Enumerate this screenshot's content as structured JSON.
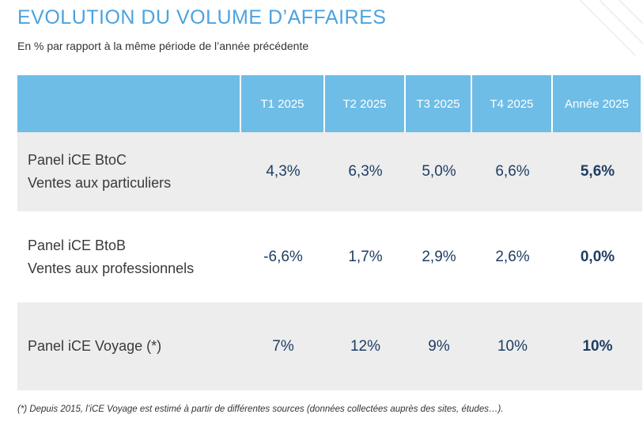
{
  "header": {
    "title": "EVOLUTION DU VOLUME D’AFFAIRES",
    "subtitle": "En % par rapport à la même période de l’année précédente"
  },
  "table": {
    "columns": [
      "",
      "T1 2025",
      "T2 2025",
      "T3 2025",
      "T4 2025",
      "Année 2025"
    ],
    "rows": [
      {
        "label_line1": "Panel iCE BtoC",
        "label_line2": "Ventes aux particuliers",
        "values": [
          "4,3%",
          "6,3%",
          "5,0%",
          "6,6%",
          "5,6%"
        ]
      },
      {
        "label_line1": "Panel iCE BtoB",
        "label_line2": "Ventes aux professionnels",
        "values": [
          "-6,6%",
          "1,7%",
          "2,9%",
          "2,6%",
          "0,0%"
        ]
      },
      {
        "label_line1": "Panel iCE Voyage (*)",
        "label_line2": "",
        "values": [
          "7%",
          "12%",
          "9%",
          "10%",
          "10%"
        ]
      }
    ]
  },
  "footnote": "(*) Depuis 2015, l’iCE Voyage est estimé à partir de différentes sources (données collectées auprès des sites, études…).",
  "colors": {
    "title": "#4aa3e0",
    "header_bg": "#6ebde6",
    "row_gray": "#ededed",
    "value_text": "#1f3d63"
  }
}
